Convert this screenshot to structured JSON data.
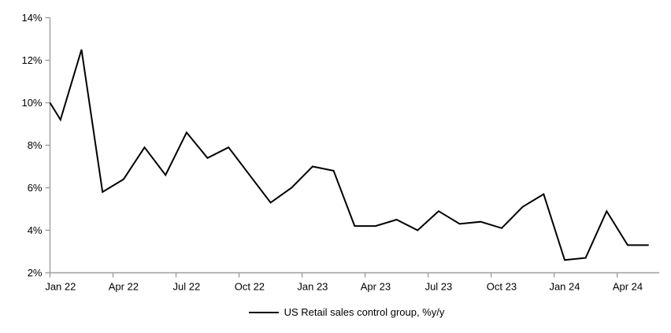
{
  "legend": {
    "label": "US Retail sales control group, %y/y"
  },
  "chart_data": {
    "type": "line",
    "title": "",
    "categories": [
      "Jan 22",
      "Feb 22",
      "Mar 22",
      "Apr 22",
      "May 22",
      "Jun 22",
      "Jul 22",
      "Aug 22",
      "Sep 22",
      "Oct 22",
      "Nov 22",
      "Dec 22",
      "Jan 23",
      "Feb 23",
      "Mar 23",
      "Apr 23",
      "May 23",
      "Jun 23",
      "Jul 23",
      "Aug 23",
      "Sep 23",
      "Oct 23",
      "Nov 23",
      "Dec 23",
      "Jan 24",
      "Feb 24",
      "Mar 24",
      "Apr 24",
      "May 24"
    ],
    "series": [
      {
        "name": "US Retail sales control group, %y/y",
        "values": [
          9.2,
          12.5,
          5.8,
          6.4,
          7.9,
          6.6,
          8.6,
          7.4,
          7.9,
          6.6,
          5.3,
          6.0,
          7.0,
          6.8,
          4.2,
          4.2,
          4.5,
          4.0,
          4.9,
          4.3,
          4.4,
          4.1,
          5.1,
          5.7,
          2.6,
          2.7,
          4.9,
          3.3,
          3.3
        ]
      }
    ],
    "edge_start_value": 10.0,
    "xlabel": "",
    "ylabel": "",
    "ylim": [
      2,
      14
    ],
    "y_tick_step": 2,
    "y_tick_labels": [
      "2%",
      "4%",
      "6%",
      "8%",
      "10%",
      "12%",
      "14%"
    ],
    "x_tick_labels": [
      "Jan 22",
      "Apr 22",
      "Jul 22",
      "Oct 22",
      "Jan 23",
      "Apr 23",
      "Jul 23",
      "Oct 23",
      "Jan 24",
      "Apr 24"
    ],
    "x_tick_interval_months": 3,
    "grid": false,
    "legend_position": "bottom-center",
    "line_color": "#000000",
    "line_width": 2,
    "axis_color": "#9d9d9d",
    "label_color": "#000000"
  }
}
